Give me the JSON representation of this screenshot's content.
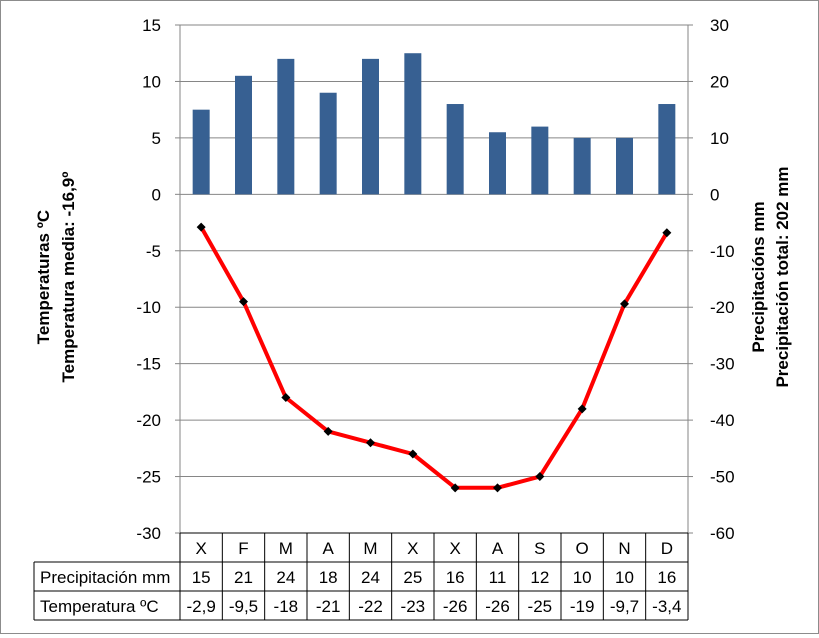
{
  "chart_data": {
    "type": "bar+line",
    "categories": [
      "X",
      "F",
      "M",
      "A",
      "M",
      "X",
      "X",
      "A",
      "S",
      "O",
      "N",
      "D"
    ],
    "series": [
      {
        "name": "Precipitación mm",
        "type": "bar",
        "axis": "right",
        "color": "#376092",
        "values": [
          15,
          21,
          24,
          18,
          24,
          25,
          16,
          11,
          12,
          10,
          10,
          16
        ],
        "table_values": [
          "15",
          "21",
          "24",
          "18",
          "24",
          "25",
          "16",
          "11",
          "12",
          "10",
          "10",
          "16"
        ]
      },
      {
        "name": "Temperatura ºC",
        "type": "line",
        "axis": "left",
        "color": "#ff0000",
        "values": [
          -2.9,
          -9.5,
          -18,
          -21,
          -22,
          -23,
          -26,
          -26,
          -25,
          -19,
          -9.7,
          -3.4
        ],
        "table_values": [
          "-2,9",
          "-9,5",
          "-18",
          "-21",
          "-22",
          "-23",
          "-26",
          "-26",
          "-25",
          "-19",
          "-9,7",
          "-3,4"
        ]
      }
    ],
    "left_axis": {
      "label_line1": "Temperaturas ºC",
      "label_line2": "Temperatura media: -16,9º",
      "range": [
        -30,
        15
      ],
      "ticks": [
        15,
        10,
        5,
        0,
        -5,
        -10,
        -15,
        -20,
        -25,
        -30
      ],
      "tick_labels": [
        "15",
        "10",
        "5",
        "0",
        "-5",
        "-10",
        "-15",
        "-20",
        "-25",
        "-30"
      ]
    },
    "right_axis": {
      "label_line1": "Precipitacións mm",
      "label_line2": "Precipitación total: 202 mm",
      "range": [
        -60,
        30
      ],
      "tick_labels": [
        "30",
        "20",
        "10",
        "0",
        "-10",
        "-20",
        "-30",
        "-40",
        "-50",
        "-60"
      ]
    },
    "grid": true,
    "legend": "data table below chart"
  }
}
